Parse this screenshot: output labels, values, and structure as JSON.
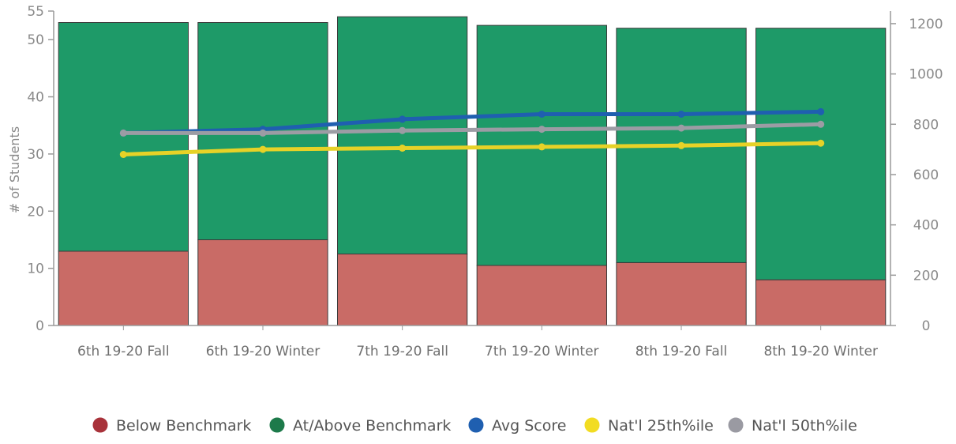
{
  "chart_data": {
    "type": "bar",
    "stacked": true,
    "categories": [
      "6th 19-20 Fall",
      "6th 19-20 Winter",
      "7th 19-20 Fall",
      "7th 19-20 Winter",
      "8th 19-20 Fall",
      "8th 19-20 Winter"
    ],
    "ylabel": "# of Students",
    "ylim": [
      0,
      55
    ],
    "yticks": [
      0,
      10,
      20,
      30,
      40,
      50,
      55
    ],
    "y2lim": [
      0,
      1250
    ],
    "y2ticks": [
      0,
      200,
      400,
      600,
      800,
      1000,
      1200
    ],
    "grid": false,
    "legend_position": "bottom",
    "bar_series": [
      {
        "name": "Below Benchmark",
        "color": "#c96b66",
        "values": [
          13,
          15,
          12.5,
          10.5,
          11,
          8
        ]
      },
      {
        "name": "At/Above Benchmark",
        "color": "#1e9a68",
        "values": [
          40,
          38,
          41.5,
          42,
          41,
          44
        ]
      }
    ],
    "line_series": [
      {
        "name": "Avg Score",
        "color": "#1f5fb0",
        "axis": "right",
        "values": [
          765,
          780,
          820,
          840,
          840,
          850
        ]
      },
      {
        "name": "Nat'l 25th%ile",
        "color": "#e7d227",
        "axis": "right",
        "values": [
          680,
          700,
          705,
          710,
          715,
          725
        ]
      },
      {
        "name": "Nat'l 50th%ile",
        "color": "#9c9ca4",
        "axis": "right",
        "values": [
          765,
          765,
          775,
          780,
          785,
          800
        ]
      }
    ],
    "legend": [
      {
        "label": "Below Benchmark",
        "color": "#a8323a"
      },
      {
        "label": "At/Above Benchmark",
        "color": "#1d7a4a"
      },
      {
        "label": "Avg Score",
        "color": "#1f5fb0"
      },
      {
        "label": "Nat'l 25th%ile",
        "color": "#f2dc22"
      },
      {
        "label": "Nat'l 50th%ile",
        "color": "#9a9aa2"
      }
    ]
  }
}
